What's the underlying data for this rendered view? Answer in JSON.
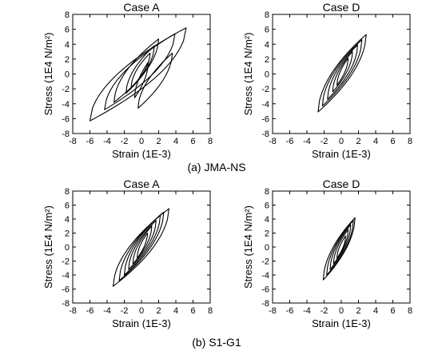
{
  "chart_data": [
    {
      "type": "line",
      "title": "Case A",
      "xlabel": "Strain (1E-3)",
      "ylabel": "Stress (1E4 N/m²)",
      "xlim": [
        -8,
        8
      ],
      "ylim": [
        -8,
        8
      ],
      "xticks": [
        -8,
        -6,
        -4,
        -2,
        0,
        2,
        4,
        6,
        8
      ],
      "yticks": [
        -8,
        -6,
        -4,
        -2,
        0,
        2,
        4,
        6,
        8
      ],
      "grid": false,
      "hysteresis_loops": [
        {
          "strain_min": -6.0,
          "stress_min": -6.3,
          "strain_max": 5.2,
          "stress_max": 6.2
        },
        {
          "strain_min": -4.3,
          "stress_min": -4.8,
          "strain_max": 3.9,
          "stress_max": 5.4
        },
        {
          "strain_min": -3.2,
          "stress_min": -3.8,
          "strain_max": 2.0,
          "stress_max": 4.7
        },
        {
          "strain_min": -1.8,
          "stress_min": -2.6,
          "strain_max": 1.5,
          "stress_max": 3.8
        },
        {
          "strain_min": -1.2,
          "stress_min": -1.8,
          "strain_max": 1.0,
          "stress_max": 2.8
        },
        {
          "strain_min": -0.4,
          "stress_min": -4.6,
          "strain_max": 3.6,
          "stress_max": 2.8
        },
        {
          "strain_min": -0.8,
          "stress_min": -3.2,
          "strain_max": 0.8,
          "stress_max": 1.6
        }
      ]
    },
    {
      "type": "line",
      "title": "Case D",
      "xlabel": "Strain (1E-3)",
      "ylabel": "Stress (1E4 N/m²)",
      "xlim": [
        -8,
        8
      ],
      "ylim": [
        -8,
        8
      ],
      "xticks": [
        -8,
        -6,
        -4,
        -2,
        0,
        2,
        4,
        6,
        8
      ],
      "yticks": [
        -8,
        -6,
        -4,
        -2,
        0,
        2,
        4,
        6,
        8
      ],
      "grid": false,
      "hysteresis_loops": [
        {
          "strain_min": -2.7,
          "stress_min": -5.1,
          "strain_max": 2.9,
          "stress_max": 5.3
        },
        {
          "strain_min": -2.2,
          "stress_min": -4.3,
          "strain_max": 2.4,
          "stress_max": 4.6
        },
        {
          "strain_min": -1.6,
          "stress_min": -3.4,
          "strain_max": 1.9,
          "stress_max": 3.9
        },
        {
          "strain_min": -1.0,
          "stress_min": -2.4,
          "strain_max": 1.3,
          "stress_max": 3.0
        },
        {
          "strain_min": -0.5,
          "stress_min": -1.5,
          "strain_max": 0.8,
          "stress_max": 2.1
        }
      ]
    },
    {
      "type": "line",
      "title": "Case A",
      "xlabel": "Strain (1E-3)",
      "ylabel": "Stress (1E4 N/m²)",
      "xlim": [
        -8,
        8
      ],
      "ylim": [
        -8,
        8
      ],
      "xticks": [
        -8,
        -6,
        -4,
        -2,
        0,
        2,
        4,
        6,
        8
      ],
      "yticks": [
        -8,
        -6,
        -4,
        -2,
        0,
        2,
        4,
        6,
        8
      ],
      "grid": false,
      "hysteresis_loops": [
        {
          "strain_min": -3.3,
          "stress_min": -5.6,
          "strain_max": 3.2,
          "stress_max": 5.5
        },
        {
          "strain_min": -2.6,
          "stress_min": -4.8,
          "strain_max": 2.6,
          "stress_max": 5.0
        },
        {
          "strain_min": -2.0,
          "stress_min": -4.0,
          "strain_max": 2.2,
          "stress_max": 4.6
        },
        {
          "strain_min": -1.5,
          "stress_min": -3.2,
          "strain_max": 1.7,
          "stress_max": 3.8
        },
        {
          "strain_min": -1.0,
          "stress_min": -2.4,
          "strain_max": 1.2,
          "stress_max": 3.0
        },
        {
          "strain_min": -0.5,
          "stress_min": -1.6,
          "strain_max": 0.7,
          "stress_max": 2.0
        }
      ]
    },
    {
      "type": "line",
      "title": "Case D",
      "xlabel": "Strain (1E-3)",
      "ylabel": "Stress (1E4 N/m²)",
      "xlim": [
        -8,
        8
      ],
      "ylim": [
        -8,
        8
      ],
      "xticks": [
        -8,
        -6,
        -4,
        -2,
        0,
        2,
        4,
        6,
        8
      ],
      "yticks": [
        -8,
        -6,
        -4,
        -2,
        0,
        2,
        4,
        6,
        8
      ],
      "grid": false,
      "hysteresis_loops": [
        {
          "strain_min": -2.1,
          "stress_min": -4.7,
          "strain_max": 1.6,
          "stress_max": 4.2
        },
        {
          "strain_min": -1.7,
          "stress_min": -4.0,
          "strain_max": 1.4,
          "stress_max": 3.8
        },
        {
          "strain_min": -1.3,
          "stress_min": -3.2,
          "strain_max": 1.1,
          "stress_max": 3.2
        },
        {
          "strain_min": -0.9,
          "stress_min": -2.4,
          "strain_max": 0.8,
          "stress_max": 2.5
        },
        {
          "strain_min": -0.5,
          "stress_min": -1.6,
          "strain_max": 0.5,
          "stress_max": 1.6
        }
      ]
    }
  ],
  "captions": {
    "top": "(a) JMA-NS",
    "bottom": "(b) S1-G1"
  }
}
